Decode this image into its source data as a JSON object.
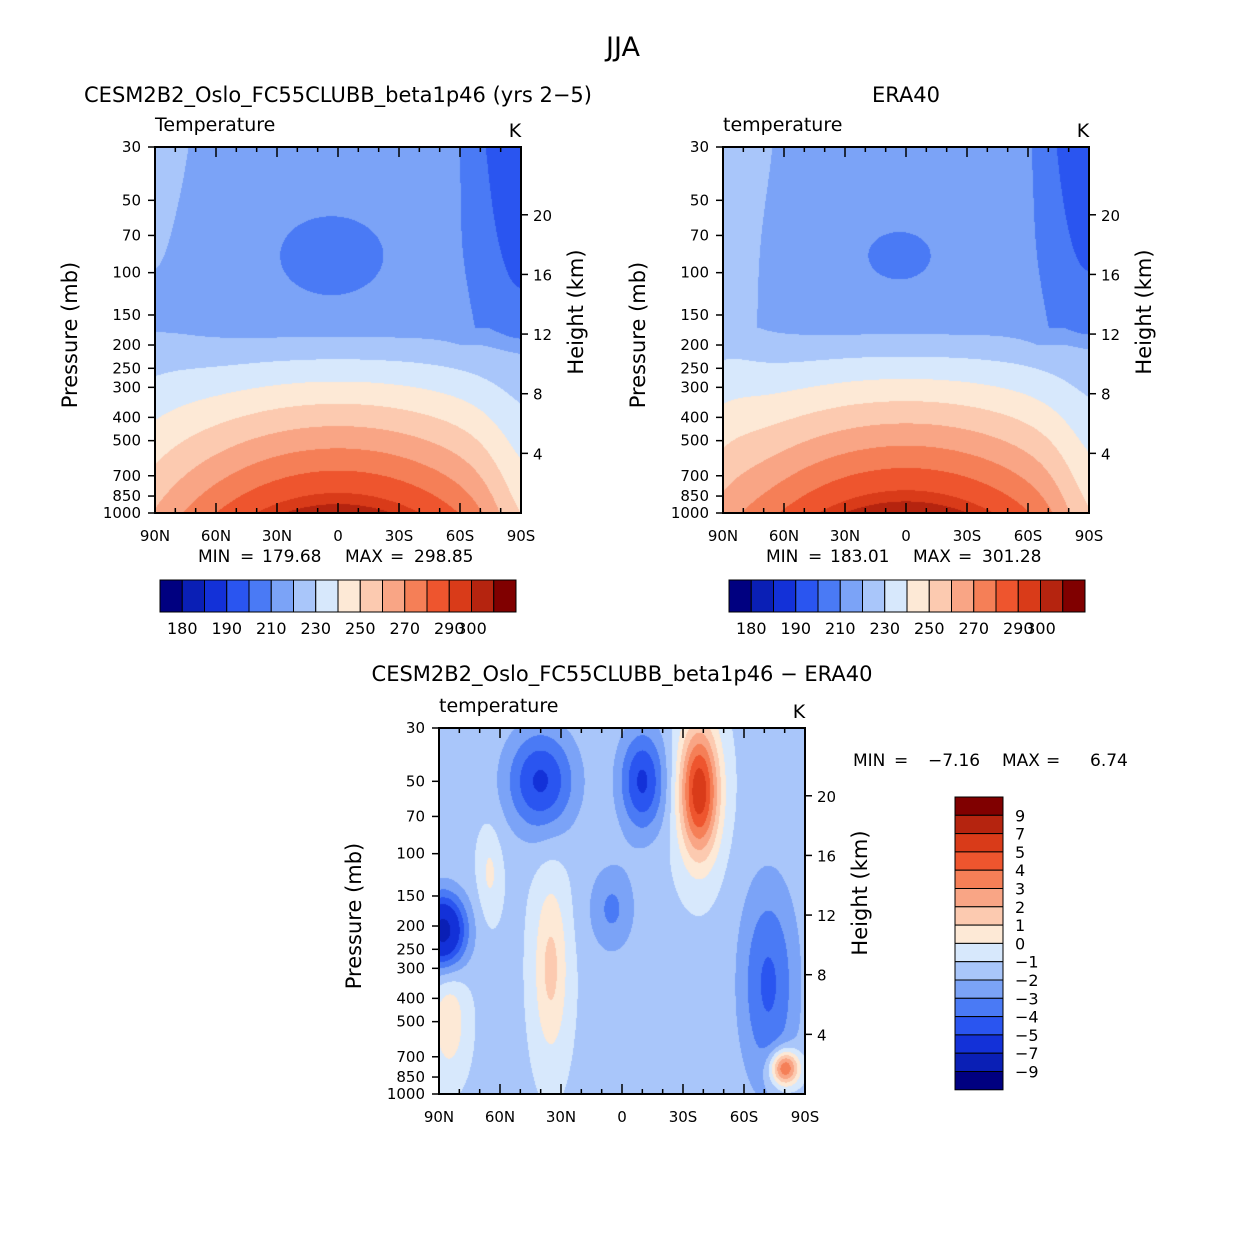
{
  "figure": {
    "title": "JJA"
  },
  "colors": {
    "abs_scale": [
      "#000080",
      "#0a1fb5",
      "#1331d8",
      "#2a55f0",
      "#4a7af5",
      "#7ba3f7",
      "#a9c6fa",
      "#d7e8fc",
      "#fde9d6",
      "#fccab0",
      "#f9a585",
      "#f57f57",
      "#ee552e",
      "#d93b19",
      "#b5240f",
      "#800000"
    ],
    "diff_scale": [
      "#000080",
      "#0a1fb5",
      "#1331d8",
      "#2a55f0",
      "#4a7af5",
      "#7ba3f7",
      "#a9c6fa",
      "#d7e8fc",
      "#fde9d6",
      "#fccab0",
      "#f9a585",
      "#f57f57",
      "#ee552e",
      "#d93b19",
      "#b5240f",
      "#800000"
    ]
  },
  "chart_data": [
    {
      "id": "model",
      "type": "contour",
      "title": "CESM2B2_Oslo_FC55CLUBB_beta1p46 (yrs 2−5)",
      "variable_label": "Temperature",
      "units": "K",
      "ylabel": "Pressure (mb)",
      "ylabel_right": "Height (km)",
      "pressure_ticks": [
        "30",
        "50",
        "70",
        "100",
        "150",
        "200",
        "250",
        "300",
        "400",
        "500",
        "700",
        "850",
        "1000"
      ],
      "height_ticks": [
        "20",
        "16",
        "12",
        "8",
        "4"
      ],
      "lat_ticks": [
        "90N",
        "60N",
        "30N",
        "0",
        "30S",
        "60S",
        "90S"
      ],
      "stats": {
        "min_label": "MIN",
        "min": "179.68",
        "max_label": "MAX",
        "max": "298.85",
        "eq": "="
      },
      "colorbar_labels": [
        "180",
        "190",
        "210",
        "230",
        "250",
        "270",
        "290",
        "300"
      ]
    },
    {
      "id": "obs",
      "type": "contour",
      "title": "ERA40",
      "variable_label": "temperature",
      "units": "K",
      "ylabel": "Pressure (mb)",
      "ylabel_right": "Height (km)",
      "pressure_ticks": [
        "30",
        "50",
        "70",
        "100",
        "150",
        "200",
        "250",
        "300",
        "400",
        "500",
        "700",
        "850",
        "1000"
      ],
      "height_ticks": [
        "20",
        "16",
        "12",
        "8",
        "4"
      ],
      "lat_ticks": [
        "90N",
        "60N",
        "30N",
        "0",
        "30S",
        "60S",
        "90S"
      ],
      "stats": {
        "min_label": "MIN",
        "min": "183.01",
        "max_label": "MAX",
        "max": "301.28",
        "eq": "="
      },
      "colorbar_labels": [
        "180",
        "190",
        "210",
        "230",
        "250",
        "270",
        "290",
        "300"
      ]
    },
    {
      "id": "diff",
      "type": "contour",
      "title": "CESM2B2_Oslo_FC55CLUBB_beta1p46 − ERA40",
      "variable_label": "temperature",
      "units": "K",
      "ylabel": "Pressure (mb)",
      "ylabel_right": "Height (km)",
      "pressure_ticks": [
        "30",
        "50",
        "70",
        "100",
        "150",
        "200",
        "250",
        "300",
        "400",
        "500",
        "700",
        "850",
        "1000"
      ],
      "height_ticks": [
        "20",
        "16",
        "12",
        "8",
        "4"
      ],
      "lat_ticks": [
        "90N",
        "60N",
        "30N",
        "0",
        "30S",
        "60S",
        "90S"
      ],
      "stats": {
        "min_label": "MIN",
        "min": "−7.16",
        "max_label": "MAX",
        "max": "6.74",
        "eq": "="
      },
      "colorbar_labels": [
        "9",
        "7",
        "5",
        "4",
        "3",
        "2",
        "1",
        "0",
        "−1",
        "−2",
        "−3",
        "−4",
        "−5",
        "−7",
        "−9"
      ]
    }
  ]
}
